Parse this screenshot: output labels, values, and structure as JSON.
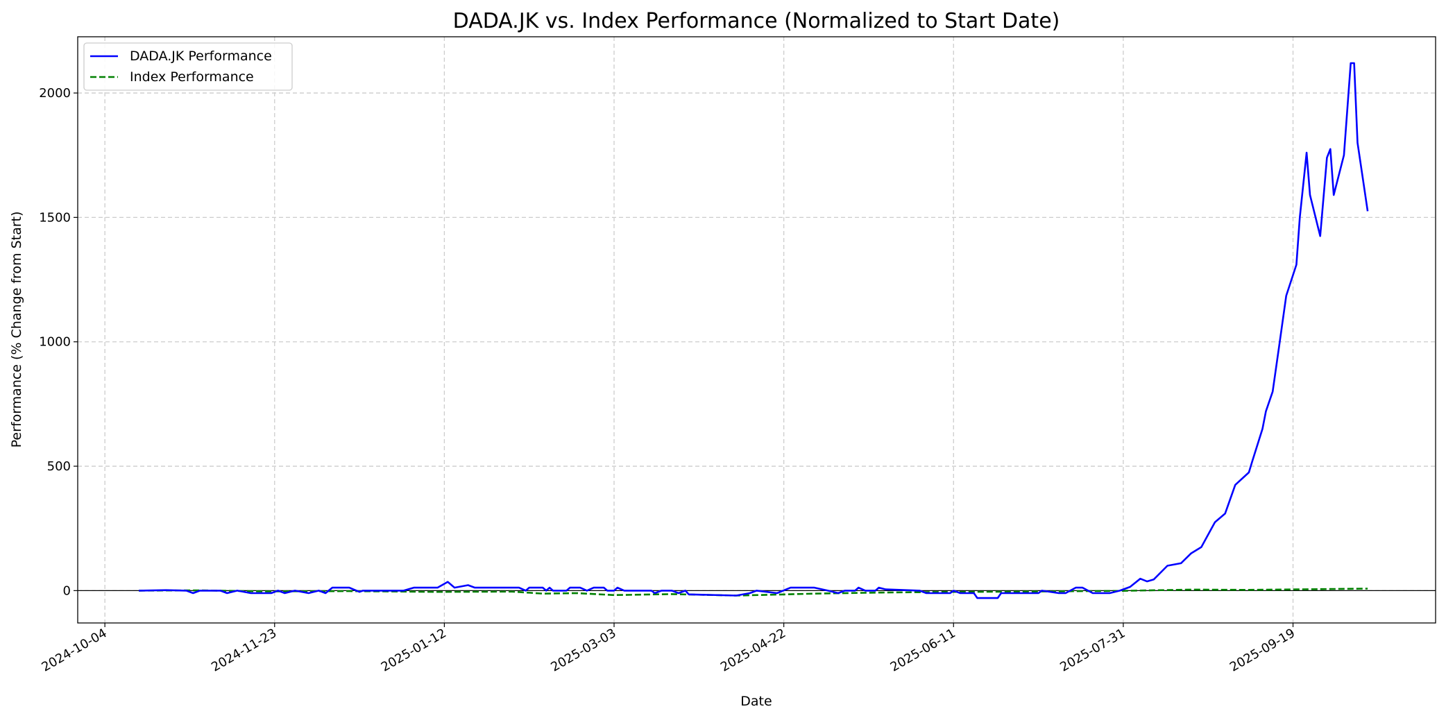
{
  "chart_data": {
    "type": "line",
    "title": "DADA.JK vs. Index Performance (Normalized to Start Date)",
    "xlabel": "Date",
    "ylabel": "Performance (% Change from Start)",
    "xlim": [
      "2024-09-26",
      "2025-10-31"
    ],
    "ylim": [
      -130,
      2226
    ],
    "x_ticks": [
      "2024-10-04",
      "2024-11-23",
      "2025-01-12",
      "2025-03-03",
      "2025-04-22",
      "2025-06-11",
      "2025-07-31",
      "2025-09-19"
    ],
    "y_ticks": [
      0,
      500,
      1000,
      1500,
      2000
    ],
    "grid": true,
    "legend_position": "top-left",
    "zero_line": true,
    "series": [
      {
        "name": "DADA.JK Performance",
        "color": "#0000ff",
        "style": "solid",
        "points": [
          [
            "2024-10-14",
            0
          ],
          [
            "2024-10-22",
            2
          ],
          [
            "2024-10-28",
            0
          ],
          [
            "2024-10-30",
            -10
          ],
          [
            "2024-11-01",
            0
          ],
          [
            "2024-11-07",
            0
          ],
          [
            "2024-11-09",
            -10
          ],
          [
            "2024-11-12",
            0
          ],
          [
            "2024-11-16",
            -10
          ],
          [
            "2024-11-22",
            -10
          ],
          [
            "2024-11-24",
            0
          ],
          [
            "2024-11-26",
            -10
          ],
          [
            "2024-11-29",
            0
          ],
          [
            "2024-12-03",
            -10
          ],
          [
            "2024-12-06",
            0
          ],
          [
            "2024-12-08",
            -10
          ],
          [
            "2024-12-10",
            12
          ],
          [
            "2024-12-15",
            12
          ],
          [
            "2024-12-18",
            -5
          ],
          [
            "2024-12-19",
            0
          ],
          [
            "2024-12-31",
            0
          ],
          [
            "2025-01-03",
            12
          ],
          [
            "2025-01-10",
            12
          ],
          [
            "2025-01-13",
            35
          ],
          [
            "2025-01-15",
            12
          ],
          [
            "2025-01-19",
            22
          ],
          [
            "2025-01-21",
            12
          ],
          [
            "2025-02-03",
            12
          ],
          [
            "2025-02-05",
            0
          ],
          [
            "2025-02-06",
            12
          ],
          [
            "2025-02-10",
            12
          ],
          [
            "2025-02-11",
            0
          ],
          [
            "2025-02-12",
            12
          ],
          [
            "2025-02-13",
            0
          ],
          [
            "2025-02-17",
            0
          ],
          [
            "2025-02-18",
            12
          ],
          [
            "2025-02-21",
            12
          ],
          [
            "2025-02-23",
            0
          ],
          [
            "2025-02-25",
            12
          ],
          [
            "2025-02-28",
            12
          ],
          [
            "2025-03-01",
            0
          ],
          [
            "2025-03-03",
            0
          ],
          [
            "2025-03-04",
            12
          ],
          [
            "2025-03-06",
            0
          ],
          [
            "2025-03-14",
            0
          ],
          [
            "2025-03-15",
            -10
          ],
          [
            "2025-03-17",
            0
          ],
          [
            "2025-03-20",
            0
          ],
          [
            "2025-03-22",
            -10
          ],
          [
            "2025-03-24",
            0
          ],
          [
            "2025-03-25",
            -15
          ],
          [
            "2025-04-08",
            -20
          ],
          [
            "2025-04-12",
            -10
          ],
          [
            "2025-04-14",
            0
          ],
          [
            "2025-04-20",
            -10
          ],
          [
            "2025-04-24",
            12
          ],
          [
            "2025-05-01",
            12
          ],
          [
            "2025-05-05",
            0
          ],
          [
            "2025-05-08",
            -10
          ],
          [
            "2025-05-10",
            0
          ],
          [
            "2025-05-13",
            0
          ],
          [
            "2025-05-14",
            12
          ],
          [
            "2025-05-16",
            0
          ],
          [
            "2025-05-19",
            0
          ],
          [
            "2025-05-20",
            12
          ],
          [
            "2025-05-22",
            5
          ],
          [
            "2025-06-01",
            0
          ],
          [
            "2025-06-03",
            -10
          ],
          [
            "2025-06-10",
            -10
          ],
          [
            "2025-06-11",
            0
          ],
          [
            "2025-06-13",
            -10
          ],
          [
            "2025-06-17",
            -10
          ],
          [
            "2025-06-18",
            -30
          ],
          [
            "2025-06-24",
            -30
          ],
          [
            "2025-06-25",
            -10
          ],
          [
            "2025-07-06",
            -10
          ],
          [
            "2025-07-07",
            0
          ],
          [
            "2025-07-12",
            -10
          ],
          [
            "2025-07-14",
            -10
          ],
          [
            "2025-07-17",
            12
          ],
          [
            "2025-07-19",
            12
          ],
          [
            "2025-07-22",
            -10
          ],
          [
            "2025-07-27",
            -10
          ],
          [
            "2025-07-30",
            0
          ],
          [
            "2025-08-02",
            15
          ],
          [
            "2025-08-05",
            48
          ],
          [
            "2025-08-07",
            37
          ],
          [
            "2025-08-09",
            45
          ],
          [
            "2025-08-13",
            100
          ],
          [
            "2025-08-17",
            110
          ],
          [
            "2025-08-20",
            150
          ],
          [
            "2025-08-23",
            175
          ],
          [
            "2025-08-27",
            275
          ],
          [
            "2025-08-30",
            310
          ],
          [
            "2025-09-02",
            425
          ],
          [
            "2025-09-06",
            475
          ],
          [
            "2025-09-07",
            520
          ],
          [
            "2025-09-10",
            650
          ],
          [
            "2025-09-11",
            720
          ],
          [
            "2025-09-13",
            800
          ],
          [
            "2025-09-15",
            990
          ],
          [
            "2025-09-17",
            1185
          ],
          [
            "2025-09-20",
            1310
          ],
          [
            "2025-09-21",
            1500
          ],
          [
            "2025-09-23",
            1760
          ],
          [
            "2025-09-24",
            1590
          ],
          [
            "2025-09-27",
            1425
          ],
          [
            "2025-09-29",
            1740
          ],
          [
            "2025-09-30",
            1775
          ],
          [
            "2025-10-01",
            1590
          ],
          [
            "2025-10-04",
            1750
          ],
          [
            "2025-10-06",
            2120
          ],
          [
            "2025-10-07",
            2120
          ],
          [
            "2025-10-08",
            1800
          ],
          [
            "2025-10-11",
            1525
          ]
        ]
      },
      {
        "name": "Index Performance",
        "color": "#008000",
        "style": "dashed",
        "points": [
          [
            "2024-10-14",
            0
          ],
          [
            "2024-11-01",
            1
          ],
          [
            "2024-11-20",
            -3
          ],
          [
            "2024-12-15",
            -2
          ],
          [
            "2025-01-10",
            -5
          ],
          [
            "2025-02-01",
            -4
          ],
          [
            "2025-02-10",
            -12
          ],
          [
            "2025-02-20",
            -10
          ],
          [
            "2025-03-03",
            -18
          ],
          [
            "2025-03-20",
            -14
          ],
          [
            "2025-04-08",
            -20
          ],
          [
            "2025-04-20",
            -16
          ],
          [
            "2025-05-01",
            -12
          ],
          [
            "2025-05-20",
            -8
          ],
          [
            "2025-06-11",
            -5
          ],
          [
            "2025-07-01",
            -4
          ],
          [
            "2025-07-31",
            -1
          ],
          [
            "2025-08-20",
            4
          ],
          [
            "2025-09-05",
            3
          ],
          [
            "2025-09-20",
            5
          ],
          [
            "2025-10-11",
            8
          ]
        ]
      }
    ]
  }
}
